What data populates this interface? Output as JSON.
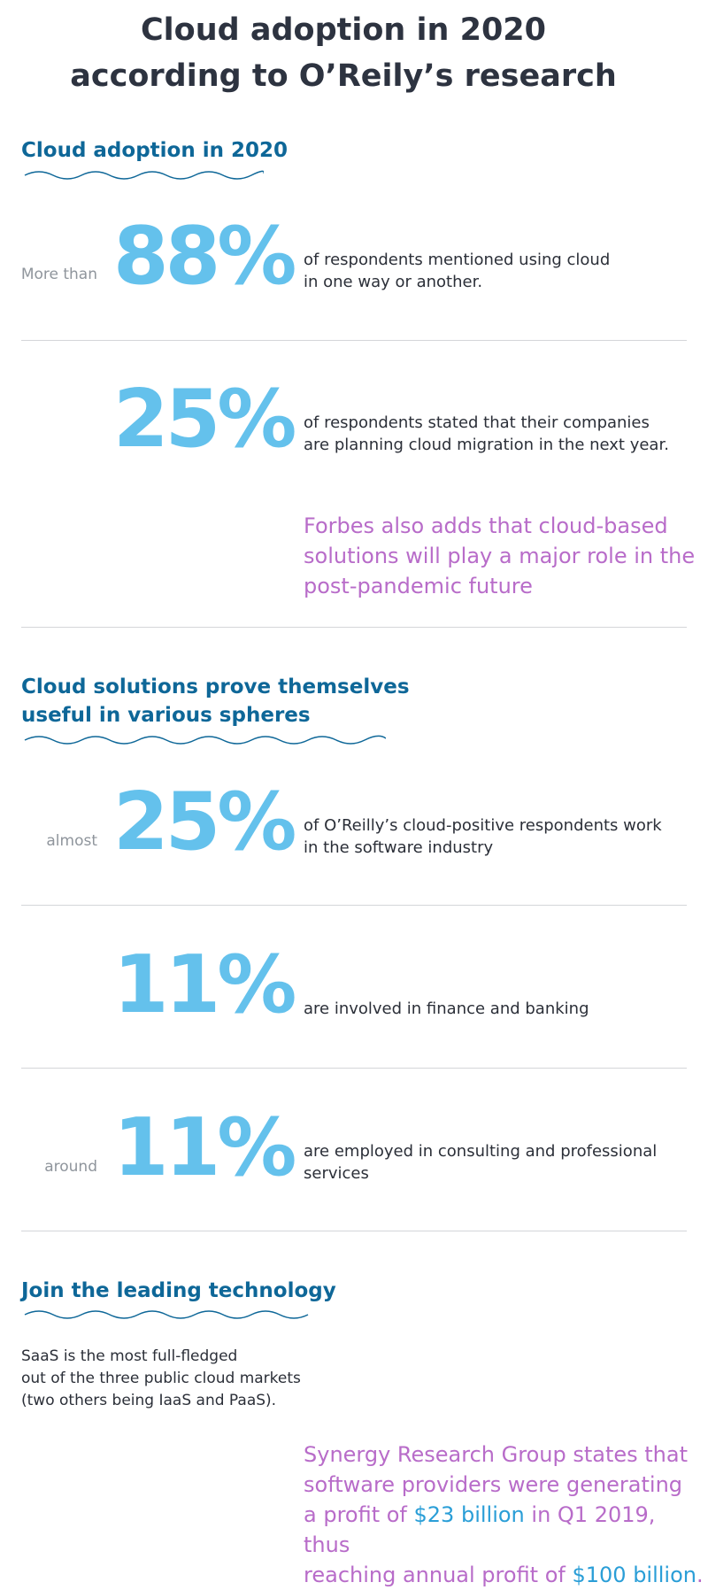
{
  "title_line1": "Cloud adoption in 2020",
  "title_line2": "according to O’Reily’s research",
  "section1": {
    "heading": "Cloud adoption in 2020",
    "stats": [
      {
        "prefix": "More than",
        "value": "88%",
        "line1": "of respondents mentioned using cloud",
        "line2": "in one way or another."
      },
      {
        "prefix": "",
        "value": "25%",
        "line1": "of respondents stated that their companies",
        "line2": "are planning cloud migration in the next year."
      }
    ],
    "quote_line1": "Forbes also adds that cloud-based",
    "quote_line2": "solutions will play a major role in the",
    "quote_line3": "post-pandemic future"
  },
  "section2": {
    "heading_line1": "Cloud solutions prove themselves",
    "heading_line2": "useful in various spheres",
    "stats": [
      {
        "prefix": "almost",
        "value": "25%",
        "line1": "of O’Reilly’s cloud-positive respondents work",
        "line2": "in the software industry"
      },
      {
        "prefix": "",
        "value": "11%",
        "line1": "are involved in finance and banking",
        "line2": ""
      },
      {
        "prefix": "around",
        "value": "11%",
        "line1": "are employed in consulting and professional",
        "line2": "services"
      }
    ]
  },
  "section3": {
    "heading": "Join the leading technology",
    "body_line1": "SaaS is the most full-fledged",
    "body_line2": "out of the three public cloud markets",
    "body_line3": "(two others being IaaS and PaaS).",
    "quote_line1": "Synergy Research Group states that",
    "quote_line2": "software providers were generating",
    "quote_line3_a": "a profit of ",
    "quote_line3_hl": "$23 billion",
    "quote_line3_b": " in Q1 2019, thus",
    "quote_line4_a": "reaching annual profit of ",
    "quote_line4_hl": "$100 billion",
    "quote_line4_b": "."
  }
}
